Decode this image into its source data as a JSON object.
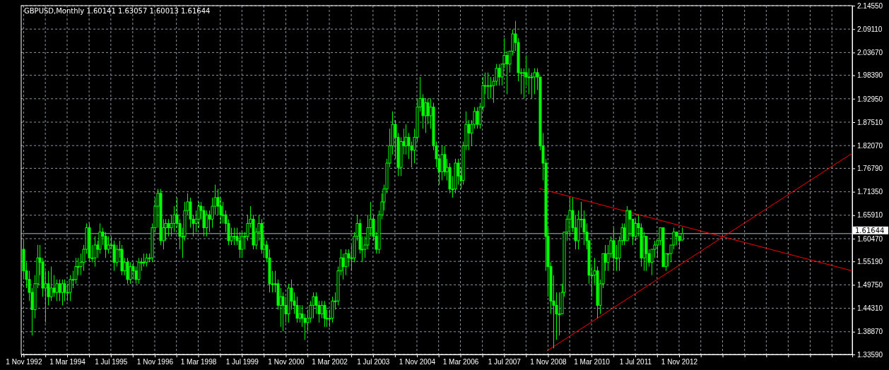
{
  "chart_data": {
    "type": "candlestick",
    "title": "GBPUSD,Monthly  1.60141 1.63057 1.60013 1.61644",
    "color": "#00ff00",
    "grid": true,
    "x": [
      "1992-11",
      "1992-12",
      "1993-01",
      "1993-02",
      "1993-03",
      "1993-04",
      "1993-05",
      "1993-06",
      "1993-07",
      "1993-08",
      "1993-09",
      "1993-10",
      "1993-11",
      "1993-12",
      "1994-01",
      "1994-02",
      "1994-03",
      "1994-04",
      "1994-05",
      "1994-06",
      "1994-07",
      "1994-08",
      "1994-09",
      "1994-10",
      "1994-11",
      "1994-12",
      "1995-01",
      "1995-02",
      "1995-03",
      "1995-04",
      "1995-05",
      "1995-06",
      "1995-07",
      "1995-08",
      "1995-09",
      "1995-10",
      "1995-11",
      "1995-12",
      "1996-01",
      "1996-02",
      "1996-03",
      "1996-04",
      "1996-05",
      "1996-06",
      "1996-07",
      "1996-08",
      "1996-09",
      "1996-10",
      "1996-11",
      "1996-12",
      "1997-01",
      "1997-02",
      "1997-03",
      "1997-04",
      "1997-05",
      "1997-06",
      "1997-07",
      "1997-08",
      "1997-09",
      "1997-10",
      "1997-11",
      "1997-12",
      "1998-01",
      "1998-02",
      "1998-03",
      "1998-04",
      "1998-05",
      "1998-06",
      "1998-07",
      "1998-08",
      "1998-09",
      "1998-10",
      "1998-11",
      "1998-12",
      "1999-01",
      "1999-02",
      "1999-03",
      "1999-04",
      "1999-05",
      "1999-06",
      "1999-07",
      "1999-08",
      "1999-09",
      "1999-10",
      "1999-11",
      "1999-12",
      "2000-01",
      "2000-02",
      "2000-03",
      "2000-04",
      "2000-05",
      "2000-06",
      "2000-07",
      "2000-08",
      "2000-09",
      "2000-10",
      "2000-11",
      "2000-12",
      "2001-01",
      "2001-02",
      "2001-03",
      "2001-04",
      "2001-05",
      "2001-06",
      "2001-07",
      "2001-08",
      "2001-09",
      "2001-10",
      "2001-11",
      "2001-12",
      "2002-01",
      "2002-02",
      "2002-03",
      "2002-04",
      "2002-05",
      "2002-06",
      "2002-07",
      "2002-08",
      "2002-09",
      "2002-10",
      "2002-11",
      "2002-12",
      "2003-01",
      "2003-02",
      "2003-03",
      "2003-04",
      "2003-05",
      "2003-06",
      "2003-07",
      "2003-08",
      "2003-09",
      "2003-10",
      "2003-11",
      "2003-12",
      "2004-01",
      "2004-02",
      "2004-03",
      "2004-04",
      "2004-05",
      "2004-06",
      "2004-07",
      "2004-08",
      "2004-09",
      "2004-10",
      "2004-11",
      "2004-12",
      "2005-01",
      "2005-02",
      "2005-03",
      "2005-04",
      "2005-05",
      "2005-06",
      "2005-07",
      "2005-08",
      "2005-09",
      "2005-10",
      "2005-11",
      "2005-12",
      "2006-01",
      "2006-02",
      "2006-03",
      "2006-04",
      "2006-05",
      "2006-06",
      "2006-07",
      "2006-08",
      "2006-09",
      "2006-10",
      "2006-11",
      "2006-12",
      "2007-01",
      "2007-02",
      "2007-03",
      "2007-04",
      "2007-05",
      "2007-06",
      "2007-07",
      "2007-08",
      "2007-09",
      "2007-10",
      "2007-11",
      "2007-12",
      "2008-01",
      "2008-02",
      "2008-03",
      "2008-04",
      "2008-05",
      "2008-06",
      "2008-07",
      "2008-08",
      "2008-09",
      "2008-10",
      "2008-11",
      "2008-12",
      "2009-01",
      "2009-02",
      "2009-03",
      "2009-04",
      "2009-05",
      "2009-06",
      "2009-07",
      "2009-08",
      "2009-09",
      "2009-10",
      "2009-11",
      "2009-12",
      "2010-01",
      "2010-02",
      "2010-03",
      "2010-04",
      "2010-05",
      "2010-06",
      "2010-07",
      "2010-08",
      "2010-09",
      "2010-10",
      "2010-11",
      "2010-12",
      "2011-01",
      "2011-02",
      "2011-03",
      "2011-04",
      "2011-05",
      "2011-06",
      "2011-07",
      "2011-08",
      "2011-09",
      "2011-10",
      "2011-11",
      "2011-12",
      "2012-01",
      "2012-02",
      "2012-03",
      "2012-04",
      "2012-05",
      "2012-06",
      "2012-07",
      "2012-08",
      "2012-09",
      "2012-10",
      "2012-11",
      "2012-12"
    ],
    "ohlc": [
      [
        1.58,
        1.6,
        1.51,
        1.53
      ],
      [
        1.53,
        1.55,
        1.49,
        1.51
      ],
      [
        1.51,
        1.53,
        1.46,
        1.48
      ],
      [
        1.48,
        1.49,
        1.38,
        1.44
      ],
      [
        1.44,
        1.52,
        1.42,
        1.5
      ],
      [
        1.5,
        1.59,
        1.49,
        1.56
      ],
      [
        1.56,
        1.59,
        1.52,
        1.55
      ],
      [
        1.55,
        1.56,
        1.47,
        1.49
      ],
      [
        1.49,
        1.53,
        1.41,
        1.5
      ],
      [
        1.5,
        1.53,
        1.45,
        1.47
      ],
      [
        1.47,
        1.54,
        1.46,
        1.49
      ],
      [
        1.49,
        1.52,
        1.47,
        1.48
      ],
      [
        1.48,
        1.51,
        1.46,
        1.5
      ],
      [
        1.5,
        1.51,
        1.46,
        1.48
      ],
      [
        1.48,
        1.51,
        1.45,
        1.5
      ],
      [
        1.5,
        1.51,
        1.46,
        1.48
      ],
      [
        1.48,
        1.5,
        1.46,
        1.48
      ],
      [
        1.48,
        1.52,
        1.46,
        1.51
      ],
      [
        1.51,
        1.53,
        1.49,
        1.51
      ],
      [
        1.51,
        1.56,
        1.5,
        1.54
      ],
      [
        1.54,
        1.56,
        1.52,
        1.54
      ],
      [
        1.54,
        1.57,
        1.52,
        1.55
      ],
      [
        1.55,
        1.59,
        1.53,
        1.58
      ],
      [
        1.58,
        1.64,
        1.57,
        1.63
      ],
      [
        1.63,
        1.64,
        1.55,
        1.56
      ],
      [
        1.56,
        1.59,
        1.55,
        1.56
      ],
      [
        1.56,
        1.61,
        1.54,
        1.59
      ],
      [
        1.59,
        1.6,
        1.56,
        1.58
      ],
      [
        1.58,
        1.64,
        1.57,
        1.62
      ],
      [
        1.62,
        1.63,
        1.59,
        1.61
      ],
      [
        1.61,
        1.62,
        1.56,
        1.58
      ],
      [
        1.58,
        1.61,
        1.57,
        1.59
      ],
      [
        1.59,
        1.61,
        1.58,
        1.59
      ],
      [
        1.59,
        1.6,
        1.53,
        1.55
      ],
      [
        1.55,
        1.59,
        1.54,
        1.58
      ],
      [
        1.58,
        1.6,
        1.56,
        1.58
      ],
      [
        1.58,
        1.59,
        1.52,
        1.53
      ],
      [
        1.53,
        1.56,
        1.52,
        1.55
      ],
      [
        1.55,
        1.56,
        1.5,
        1.51
      ],
      [
        1.51,
        1.55,
        1.5,
        1.54
      ],
      [
        1.54,
        1.55,
        1.51,
        1.53
      ],
      [
        1.53,
        1.54,
        1.5,
        1.51
      ],
      [
        1.51,
        1.56,
        1.5,
        1.55
      ],
      [
        1.55,
        1.56,
        1.53,
        1.55
      ],
      [
        1.55,
        1.57,
        1.54,
        1.55
      ],
      [
        1.55,
        1.57,
        1.54,
        1.56
      ],
      [
        1.56,
        1.57,
        1.55,
        1.56
      ],
      [
        1.56,
        1.64,
        1.55,
        1.63
      ],
      [
        1.63,
        1.7,
        1.62,
        1.68
      ],
      [
        1.68,
        1.72,
        1.63,
        1.71
      ],
      [
        1.71,
        1.72,
        1.59,
        1.6
      ],
      [
        1.6,
        1.65,
        1.58,
        1.63
      ],
      [
        1.63,
        1.65,
        1.6,
        1.64
      ],
      [
        1.64,
        1.65,
        1.61,
        1.63
      ],
      [
        1.63,
        1.66,
        1.61,
        1.64
      ],
      [
        1.64,
        1.68,
        1.62,
        1.66
      ],
      [
        1.66,
        1.7,
        1.63,
        1.64
      ],
      [
        1.64,
        1.65,
        1.58,
        1.61
      ],
      [
        1.61,
        1.63,
        1.56,
        1.61
      ],
      [
        1.61,
        1.69,
        1.6,
        1.67
      ],
      [
        1.67,
        1.71,
        1.66,
        1.69
      ],
      [
        1.69,
        1.7,
        1.63,
        1.65
      ],
      [
        1.65,
        1.66,
        1.61,
        1.64
      ],
      [
        1.64,
        1.67,
        1.62,
        1.65
      ],
      [
        1.65,
        1.69,
        1.63,
        1.68
      ],
      [
        1.68,
        1.69,
        1.65,
        1.67
      ],
      [
        1.67,
        1.68,
        1.61,
        1.63
      ],
      [
        1.63,
        1.67,
        1.61,
        1.66
      ],
      [
        1.66,
        1.67,
        1.62,
        1.65
      ],
      [
        1.65,
        1.7,
        1.63,
        1.68
      ],
      [
        1.68,
        1.73,
        1.66,
        1.7
      ],
      [
        1.7,
        1.72,
        1.66,
        1.68
      ],
      [
        1.68,
        1.7,
        1.64,
        1.66
      ],
      [
        1.66,
        1.69,
        1.64,
        1.66
      ],
      [
        1.66,
        1.67,
        1.62,
        1.64
      ],
      [
        1.64,
        1.65,
        1.59,
        1.6
      ],
      [
        1.6,
        1.63,
        1.59,
        1.61
      ],
      [
        1.61,
        1.63,
        1.59,
        1.61
      ],
      [
        1.61,
        1.63,
        1.59,
        1.6
      ],
      [
        1.6,
        1.62,
        1.56,
        1.58
      ],
      [
        1.58,
        1.62,
        1.56,
        1.61
      ],
      [
        1.61,
        1.62,
        1.58,
        1.61
      ],
      [
        1.61,
        1.66,
        1.6,
        1.64
      ],
      [
        1.64,
        1.68,
        1.63,
        1.65
      ],
      [
        1.65,
        1.66,
        1.58,
        1.59
      ],
      [
        1.59,
        1.63,
        1.58,
        1.62
      ],
      [
        1.62,
        1.66,
        1.6,
        1.64
      ],
      [
        1.64,
        1.65,
        1.57,
        1.58
      ],
      [
        1.58,
        1.61,
        1.56,
        1.59
      ],
      [
        1.59,
        1.6,
        1.55,
        1.56
      ],
      [
        1.56,
        1.58,
        1.48,
        1.5
      ],
      [
        1.5,
        1.53,
        1.48,
        1.5
      ],
      [
        1.5,
        1.53,
        1.48,
        1.5
      ],
      [
        1.5,
        1.51,
        1.44,
        1.45
      ],
      [
        1.45,
        1.49,
        1.4,
        1.47
      ],
      [
        1.47,
        1.48,
        1.39,
        1.45
      ],
      [
        1.45,
        1.47,
        1.41,
        1.43
      ],
      [
        1.43,
        1.5,
        1.41,
        1.49
      ],
      [
        1.49,
        1.51,
        1.44,
        1.46
      ],
      [
        1.46,
        1.48,
        1.43,
        1.45
      ],
      [
        1.45,
        1.47,
        1.41,
        1.42
      ],
      [
        1.42,
        1.45,
        1.41,
        1.43
      ],
      [
        1.43,
        1.45,
        1.4,
        1.42
      ],
      [
        1.42,
        1.43,
        1.37,
        1.41
      ],
      [
        1.41,
        1.44,
        1.39,
        1.42
      ],
      [
        1.42,
        1.46,
        1.41,
        1.45
      ],
      [
        1.45,
        1.48,
        1.42,
        1.47
      ],
      [
        1.47,
        1.48,
        1.43,
        1.45
      ],
      [
        1.45,
        1.46,
        1.41,
        1.43
      ],
      [
        1.43,
        1.46,
        1.42,
        1.45
      ],
      [
        1.45,
        1.46,
        1.4,
        1.42
      ],
      [
        1.42,
        1.44,
        1.4,
        1.42
      ],
      [
        1.42,
        1.44,
        1.4,
        1.42
      ],
      [
        1.42,
        1.47,
        1.41,
        1.46
      ],
      [
        1.46,
        1.48,
        1.44,
        1.46
      ],
      [
        1.46,
        1.54,
        1.45,
        1.53
      ],
      [
        1.53,
        1.58,
        1.52,
        1.56
      ],
      [
        1.56,
        1.57,
        1.51,
        1.54
      ],
      [
        1.54,
        1.58,
        1.52,
        1.57
      ],
      [
        1.57,
        1.58,
        1.54,
        1.56
      ],
      [
        1.56,
        1.59,
        1.53,
        1.56
      ],
      [
        1.56,
        1.62,
        1.55,
        1.61
      ],
      [
        1.61,
        1.66,
        1.6,
        1.64
      ],
      [
        1.64,
        1.65,
        1.57,
        1.58
      ],
      [
        1.58,
        1.61,
        1.55,
        1.58
      ],
      [
        1.58,
        1.61,
        1.56,
        1.59
      ],
      [
        1.59,
        1.66,
        1.58,
        1.63
      ],
      [
        1.63,
        1.69,
        1.61,
        1.65
      ],
      [
        1.65,
        1.66,
        1.6,
        1.61
      ],
      [
        1.61,
        1.62,
        1.57,
        1.58
      ],
      [
        1.58,
        1.67,
        1.57,
        1.66
      ],
      [
        1.66,
        1.71,
        1.65,
        1.69
      ],
      [
        1.69,
        1.73,
        1.67,
        1.72
      ],
      [
        1.72,
        1.79,
        1.71,
        1.78
      ],
      [
        1.78,
        1.86,
        1.77,
        1.82
      ],
      [
        1.82,
        1.9,
        1.8,
        1.87
      ],
      [
        1.87,
        1.88,
        1.79,
        1.84
      ],
      [
        1.84,
        1.85,
        1.75,
        1.77
      ],
      [
        1.77,
        1.84,
        1.75,
        1.83
      ],
      [
        1.83,
        1.86,
        1.8,
        1.82
      ],
      [
        1.82,
        1.87,
        1.8,
        1.84
      ],
      [
        1.84,
        1.85,
        1.79,
        1.82
      ],
      [
        1.82,
        1.83,
        1.77,
        1.81
      ],
      [
        1.81,
        1.86,
        1.78,
        1.84
      ],
      [
        1.84,
        1.93,
        1.83,
        1.91
      ],
      [
        1.91,
        1.98,
        1.9,
        1.93
      ],
      [
        1.93,
        1.94,
        1.86,
        1.89
      ],
      [
        1.89,
        1.93,
        1.85,
        1.92
      ],
      [
        1.92,
        1.93,
        1.87,
        1.89
      ],
      [
        1.89,
        1.93,
        1.86,
        1.91
      ],
      [
        1.91,
        1.92,
        1.81,
        1.82
      ],
      [
        1.82,
        1.83,
        1.77,
        1.79
      ],
      [
        1.79,
        1.8,
        1.73,
        1.76
      ],
      [
        1.76,
        1.82,
        1.74,
        1.8
      ],
      [
        1.8,
        1.82,
        1.75,
        1.76
      ],
      [
        1.76,
        1.79,
        1.74,
        1.77
      ],
      [
        1.77,
        1.78,
        1.71,
        1.72
      ],
      [
        1.72,
        1.75,
        1.7,
        1.72
      ],
      [
        1.72,
        1.79,
        1.71,
        1.78
      ],
      [
        1.78,
        1.79,
        1.73,
        1.75
      ],
      [
        1.75,
        1.77,
        1.72,
        1.74
      ],
      [
        1.74,
        1.83,
        1.73,
        1.82
      ],
      [
        1.82,
        1.9,
        1.81,
        1.87
      ],
      [
        1.87,
        1.88,
        1.81,
        1.85
      ],
      [
        1.85,
        1.88,
        1.82,
        1.87
      ],
      [
        1.87,
        1.91,
        1.86,
        1.9
      ],
      [
        1.9,
        1.91,
        1.86,
        1.87
      ],
      [
        1.87,
        1.92,
        1.86,
        1.91
      ],
      [
        1.91,
        1.98,
        1.9,
        1.96
      ],
      [
        1.96,
        1.99,
        1.94,
        1.96
      ],
      [
        1.96,
        1.99,
        1.93,
        1.96
      ],
      [
        1.96,
        1.98,
        1.93,
        1.96
      ],
      [
        1.96,
        1.98,
        1.92,
        1.97
      ],
      [
        1.97,
        2.01,
        1.96,
        2.0
      ],
      [
        2.0,
        2.01,
        1.96,
        1.98
      ],
      [
        1.98,
        2.01,
        1.96,
        2.01
      ],
      [
        2.01,
        2.07,
        2.0,
        2.03
      ],
      [
        2.03,
        2.04,
        1.94,
        2.01
      ],
      [
        2.01,
        2.04,
        1.99,
        2.04
      ],
      [
        2.04,
        2.09,
        2.03,
        2.08
      ],
      [
        2.08,
        2.11,
        2.04,
        2.06
      ],
      [
        2.06,
        2.07,
        1.97,
        1.99
      ],
      [
        1.99,
        2.0,
        1.94,
        1.99
      ],
      [
        1.99,
        2.0,
        1.93,
        1.99
      ],
      [
        1.99,
        2.03,
        1.96,
        1.98
      ],
      [
        1.98,
        2.0,
        1.94,
        1.98
      ],
      [
        1.98,
        1.99,
        1.93,
        1.98
      ],
      [
        1.98,
        2.0,
        1.94,
        1.99
      ],
      [
        1.99,
        2.0,
        1.95,
        1.98
      ],
      [
        1.98,
        1.98,
        1.81,
        1.82
      ],
      [
        1.82,
        1.85,
        1.74,
        1.78
      ],
      [
        1.78,
        1.79,
        1.53,
        1.61
      ],
      [
        1.61,
        1.63,
        1.47,
        1.54
      ],
      [
        1.54,
        1.55,
        1.43,
        1.46
      ],
      [
        1.46,
        1.52,
        1.35,
        1.45
      ],
      [
        1.45,
        1.48,
        1.37,
        1.43
      ],
      [
        1.43,
        1.48,
        1.38,
        1.43
      ],
      [
        1.43,
        1.5,
        1.43,
        1.48
      ],
      [
        1.48,
        1.62,
        1.47,
        1.62
      ],
      [
        1.62,
        1.66,
        1.6,
        1.65
      ],
      [
        1.65,
        1.7,
        1.61,
        1.67
      ],
      [
        1.67,
        1.7,
        1.62,
        1.63
      ],
      [
        1.63,
        1.66,
        1.58,
        1.6
      ],
      [
        1.6,
        1.67,
        1.58,
        1.65
      ],
      [
        1.65,
        1.69,
        1.63,
        1.65
      ],
      [
        1.65,
        1.67,
        1.59,
        1.62
      ],
      [
        1.62,
        1.64,
        1.58,
        1.6
      ],
      [
        1.6,
        1.6,
        1.5,
        1.52
      ],
      [
        1.52,
        1.54,
        1.47,
        1.52
      ],
      [
        1.52,
        1.56,
        1.5,
        1.53
      ],
      [
        1.53,
        1.54,
        1.42,
        1.45
      ],
      [
        1.45,
        1.51,
        1.43,
        1.5
      ],
      [
        1.5,
        1.57,
        1.49,
        1.57
      ],
      [
        1.57,
        1.59,
        1.53,
        1.55
      ],
      [
        1.55,
        1.59,
        1.53,
        1.57
      ],
      [
        1.57,
        1.61,
        1.56,
        1.6
      ],
      [
        1.6,
        1.63,
        1.53,
        1.56
      ],
      [
        1.56,
        1.59,
        1.53,
        1.56
      ],
      [
        1.56,
        1.61,
        1.53,
        1.6
      ],
      [
        1.6,
        1.64,
        1.59,
        1.63
      ],
      [
        1.63,
        1.64,
        1.59,
        1.6
      ],
      [
        1.6,
        1.68,
        1.6,
        1.67
      ],
      [
        1.67,
        1.67,
        1.61,
        1.65
      ],
      [
        1.65,
        1.65,
        1.59,
        1.61
      ],
      [
        1.61,
        1.65,
        1.6,
        1.64
      ],
      [
        1.64,
        1.66,
        1.61,
        1.63
      ],
      [
        1.63,
        1.64,
        1.54,
        1.56
      ],
      [
        1.56,
        1.62,
        1.53,
        1.61
      ],
      [
        1.61,
        1.61,
        1.53,
        1.57
      ],
      [
        1.57,
        1.58,
        1.54,
        1.55
      ],
      [
        1.55,
        1.58,
        1.52,
        1.58
      ],
      [
        1.58,
        1.6,
        1.56,
        1.59
      ],
      [
        1.59,
        1.6,
        1.56,
        1.6
      ],
      [
        1.6,
        1.63,
        1.59,
        1.63
      ],
      [
        1.63,
        1.63,
        1.54,
        1.54
      ],
      [
        1.54,
        1.57,
        1.53,
        1.57
      ],
      [
        1.57,
        1.57,
        1.54,
        1.57
      ],
      [
        1.57,
        1.59,
        1.55,
        1.59
      ],
      [
        1.59,
        1.63,
        1.58,
        1.62
      ],
      [
        1.62,
        1.62,
        1.59,
        1.61
      ],
      [
        1.61,
        1.61,
        1.58,
        1.6
      ],
      [
        1.60141,
        1.63057,
        1.60013,
        1.61644
      ]
    ],
    "series": [
      {
        "type": "line",
        "color": "#ff0000",
        "x": [
          "2008-07-28",
          "2018-02-13"
        ],
        "values": [
          1.721,
          1.53
        ]
      },
      {
        "type": "line",
        "color": "#ff0000",
        "x": [
          "2008-10-19",
          "2018-02-13"
        ],
        "values": [
          1.344,
          1.803
        ]
      }
    ],
    "ref_lines": [
      {
        "axis": "y",
        "value": 1.61644,
        "label": "1.61644",
        "color": "#b0b8c0"
      }
    ],
    "xlim": [
      "1992-10-05",
      "2018-02-13"
    ],
    "xticks": [
      {
        "value": "1992-11-01",
        "label": "1 Nov 1992"
      },
      {
        "value": "1993-07-01",
        "label": null
      },
      {
        "value": "1994-03-01",
        "label": "1 Mar 1994"
      },
      {
        "value": "1994-11-01",
        "label": null
      },
      {
        "value": "1995-07-01",
        "label": "1 Jul 1995"
      },
      {
        "value": "1996-03-01",
        "label": null
      },
      {
        "value": "1996-11-01",
        "label": "1 Nov 1996"
      },
      {
        "value": "1997-07-01",
        "label": null
      },
      {
        "value": "1998-03-01",
        "label": "1 Mar 1998"
      },
      {
        "value": "1998-11-01",
        "label": null
      },
      {
        "value": "1999-07-01",
        "label": "1 Jul 1999"
      },
      {
        "value": "2000-03-01",
        "label": null
      },
      {
        "value": "2000-11-01",
        "label": "1 Nov 2000"
      },
      {
        "value": "2001-07-01",
        "label": null
      },
      {
        "value": "2002-03-01",
        "label": "1 Mar 2002"
      },
      {
        "value": "2002-11-01",
        "label": null
      },
      {
        "value": "2003-07-01",
        "label": "1 Jul 2003"
      },
      {
        "value": "2004-03-01",
        "label": null
      },
      {
        "value": "2004-11-01",
        "label": "1 Nov 2004"
      },
      {
        "value": "2005-07-01",
        "label": null
      },
      {
        "value": "2006-03-01",
        "label": "1 Mar 2006"
      },
      {
        "value": "2006-11-01",
        "label": null
      },
      {
        "value": "2007-07-01",
        "label": "1 Jul 2007"
      },
      {
        "value": "2008-03-01",
        "label": null
      },
      {
        "value": "2008-11-01",
        "label": "1 Nov 2008"
      },
      {
        "value": "2009-07-01",
        "label": null
      },
      {
        "value": "2010-03-01",
        "label": "1 Mar 2010"
      },
      {
        "value": "2010-11-01",
        "label": null
      },
      {
        "value": "2011-07-01",
        "label": "1 Jul 2011"
      },
      {
        "value": "2012-03-01",
        "label": null
      },
      {
        "value": "2012-11-01",
        "label": "1 Nov 2012"
      },
      {
        "value": "2013-07-01",
        "label": null
      },
      {
        "value": "2014-03-01",
        "label": null
      },
      {
        "value": "2014-11-01",
        "label": null
      },
      {
        "value": "2015-07-01",
        "label": null
      },
      {
        "value": "2016-03-01",
        "label": null
      },
      {
        "value": "2016-11-01",
        "label": null
      },
      {
        "value": "2017-07-01",
        "label": null
      }
    ],
    "ylim": [
      1.3359,
      2.1455
    ],
    "yticks": [
      {
        "value": 1.3359,
        "label": "1.33590"
      },
      {
        "value": 1.3887,
        "label": "1.38870"
      },
      {
        "value": 1.4431,
        "label": "1.44310"
      },
      {
        "value": 1.4975,
        "label": "1.49750"
      },
      {
        "value": 1.5519,
        "label": "1.55190"
      },
      {
        "value": 1.6047,
        "label": "1.60470"
      },
      {
        "value": 1.6591,
        "label": "1.65910"
      },
      {
        "value": 1.7135,
        "label": "1.71350"
      },
      {
        "value": 1.7679,
        "label": "1.76790"
      },
      {
        "value": 1.8207,
        "label": "1.82070"
      },
      {
        "value": 1.8751,
        "label": "1.87510"
      },
      {
        "value": 1.9295,
        "label": "1.92950"
      },
      {
        "value": 1.9839,
        "label": "1.98390"
      },
      {
        "value": 2.0367,
        "label": "2.03670"
      },
      {
        "value": 2.0911,
        "label": "2.09110"
      },
      {
        "value": 2.1455,
        "label": "2.14550"
      }
    ]
  }
}
